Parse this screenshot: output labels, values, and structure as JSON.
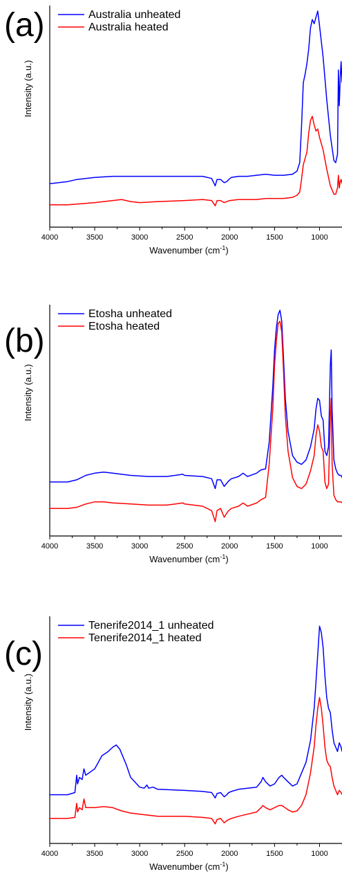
{
  "chart_data": [
    {
      "type": "line",
      "panel_label": "(a)",
      "xlabel": "Wavenumber (cm",
      "xlabel_sup": "-1",
      "xlabel_end": ")",
      "ylabel": "Intensity (a.u.)",
      "xlim": [
        4000,
        750
      ],
      "x_reversed": true,
      "ylim": [
        0,
        1
      ],
      "x_ticks": [
        "4000",
        "3500",
        "3000",
        "2500",
        "2000",
        "1500",
        "1000"
      ],
      "x_tick_values": [
        4000,
        3500,
        3000,
        2500,
        2000,
        1500,
        1000
      ],
      "legend_position": "top-left",
      "series": [
        {
          "name": "Australia unheated",
          "color": "#0000ff",
          "x": [
            4000,
            3800,
            3700,
            3500,
            3300,
            3000,
            2800,
            2500,
            2300,
            2200,
            2160,
            2140,
            2100,
            2060,
            2030,
            2010,
            1980,
            1900,
            1800,
            1700,
            1600,
            1500,
            1400,
            1300,
            1250,
            1220,
            1200,
            1180,
            1160,
            1140,
            1120,
            1100,
            1080,
            1060,
            1040,
            1020,
            1000,
            960,
            920,
            880,
            840,
            820,
            800,
            790,
            780,
            770,
            760,
            750
          ],
          "y": [
            0.18,
            0.19,
            0.2,
            0.21,
            0.215,
            0.215,
            0.215,
            0.215,
            0.215,
            0.205,
            0.17,
            0.2,
            0.2,
            0.185,
            0.19,
            0.2,
            0.21,
            0.215,
            0.215,
            0.22,
            0.225,
            0.22,
            0.22,
            0.225,
            0.24,
            0.28,
            0.45,
            0.66,
            0.7,
            0.75,
            0.82,
            0.92,
            0.96,
            0.94,
            0.97,
            1.0,
            0.93,
            0.78,
            0.58,
            0.41,
            0.29,
            0.28,
            0.32,
            0.72,
            0.55,
            0.68,
            0.76,
            0.66
          ]
        },
        {
          "name": "Australia heated",
          "color": "#ff0000",
          "x": [
            4000,
            3800,
            3500,
            3300,
            3200,
            3100,
            3000,
            2800,
            2500,
            2300,
            2200,
            2160,
            2140,
            2100,
            2060,
            2030,
            2000,
            1900,
            1800,
            1700,
            1600,
            1500,
            1400,
            1300,
            1250,
            1220,
            1200,
            1180,
            1160,
            1140,
            1120,
            1100,
            1080,
            1060,
            1040,
            1020,
            1000,
            960,
            920,
            880,
            840,
            820,
            800,
            790,
            780,
            770,
            760,
            750
          ],
          "y": [
            0.08,
            0.08,
            0.09,
            0.1,
            0.105,
            0.095,
            0.09,
            0.095,
            0.1,
            0.105,
            0.1,
            0.075,
            0.1,
            0.1,
            0.09,
            0.095,
            0.1,
            0.105,
            0.105,
            0.105,
            0.11,
            0.11,
            0.11,
            0.115,
            0.125,
            0.14,
            0.2,
            0.27,
            0.3,
            0.33,
            0.42,
            0.48,
            0.5,
            0.46,
            0.43,
            0.44,
            0.4,
            0.34,
            0.25,
            0.17,
            0.13,
            0.13,
            0.16,
            0.22,
            0.16,
            0.19,
            0.2,
            0.18
          ]
        }
      ]
    },
    {
      "type": "line",
      "panel_label": "(b)",
      "xlabel": "Wavenumber (cm",
      "xlabel_sup": "-1",
      "xlabel_end": ")",
      "ylabel": "Intensity (a.u.)",
      "xlim": [
        4000,
        750
      ],
      "x_reversed": true,
      "ylim": [
        0,
        1
      ],
      "x_ticks": [
        "4000",
        "3500",
        "3000",
        "2500",
        "2000",
        "1500",
        "1000"
      ],
      "x_tick_values": [
        4000,
        3500,
        3000,
        2500,
        2000,
        1500,
        1000
      ],
      "legend_position": "top-left",
      "series": [
        {
          "name": "Etosha unheated",
          "color": "#0000ff",
          "x": [
            4000,
            3800,
            3700,
            3600,
            3500,
            3400,
            3300,
            3100,
            2900,
            2700,
            2520,
            2500,
            2300,
            2200,
            2160,
            2140,
            2100,
            2060,
            2030,
            2010,
            1980,
            1900,
            1850,
            1800,
            1700,
            1650,
            1600,
            1560,
            1520,
            1500,
            1480,
            1460,
            1440,
            1420,
            1400,
            1380,
            1350,
            1300,
            1250,
            1200,
            1150,
            1100,
            1060,
            1040,
            1020,
            1000,
            980,
            960,
            940,
            920,
            900,
            880,
            870,
            860,
            840,
            820,
            800,
            780,
            760,
            750
          ],
          "y": [
            0.22,
            0.22,
            0.23,
            0.25,
            0.26,
            0.265,
            0.26,
            0.25,
            0.245,
            0.245,
            0.255,
            0.25,
            0.245,
            0.235,
            0.19,
            0.23,
            0.23,
            0.2,
            0.215,
            0.225,
            0.235,
            0.245,
            0.26,
            0.245,
            0.26,
            0.275,
            0.28,
            0.4,
            0.65,
            0.82,
            0.92,
            0.98,
            1.0,
            0.95,
            0.78,
            0.6,
            0.45,
            0.34,
            0.31,
            0.3,
            0.32,
            0.38,
            0.46,
            0.55,
            0.6,
            0.59,
            0.52,
            0.5,
            0.36,
            0.34,
            0.38,
            0.75,
            0.82,
            0.55,
            0.32,
            0.28,
            0.26,
            0.25,
            0.25,
            0.24
          ]
        },
        {
          "name": "Etosha heated",
          "color": "#ff0000",
          "x": [
            4000,
            3800,
            3700,
            3600,
            3500,
            3400,
            3300,
            3100,
            2900,
            2700,
            2520,
            2500,
            2300,
            2200,
            2160,
            2140,
            2100,
            2060,
            2030,
            2010,
            1980,
            1900,
            1850,
            1800,
            1700,
            1650,
            1600,
            1560,
            1520,
            1500,
            1480,
            1460,
            1440,
            1420,
            1400,
            1380,
            1350,
            1300,
            1250,
            1200,
            1150,
            1100,
            1060,
            1040,
            1020,
            1000,
            980,
            960,
            940,
            920,
            900,
            880,
            870,
            860,
            840,
            820,
            800,
            780,
            760,
            750
          ],
          "y": [
            0.1,
            0.1,
            0.105,
            0.12,
            0.13,
            0.13,
            0.125,
            0.12,
            0.115,
            0.115,
            0.125,
            0.12,
            0.11,
            0.09,
            0.04,
            0.09,
            0.1,
            0.06,
            0.08,
            0.09,
            0.1,
            0.11,
            0.125,
            0.11,
            0.125,
            0.14,
            0.15,
            0.3,
            0.55,
            0.75,
            0.86,
            0.94,
            0.95,
            0.9,
            0.72,
            0.52,
            0.36,
            0.24,
            0.2,
            0.19,
            0.21,
            0.27,
            0.34,
            0.43,
            0.48,
            0.45,
            0.38,
            0.36,
            0.22,
            0.19,
            0.21,
            0.52,
            0.6,
            0.3,
            0.16,
            0.14,
            0.13,
            0.13,
            0.13,
            0.125
          ]
        }
      ]
    },
    {
      "type": "line",
      "panel_label": "(c)",
      "xlabel": "Wavenumber (cm",
      "xlabel_sup": "-1",
      "xlabel_end": ")",
      "ylabel": "Intensity (a.u.)",
      "xlim": [
        4000,
        750
      ],
      "x_reversed": true,
      "ylim": [
        0,
        1
      ],
      "x_ticks": [
        "4000",
        "3500",
        "3000",
        "2500",
        "2000",
        "1500",
        "1000"
      ],
      "x_tick_values": [
        4000,
        3500,
        3000,
        2500,
        2000,
        1500,
        1000
      ],
      "legend_position": "top-left",
      "series": [
        {
          "name": "Tenerife2014_1 unheated",
          "color": "#0000ff",
          "x": [
            4000,
            3800,
            3720,
            3700,
            3690,
            3670,
            3640,
            3620,
            3600,
            3500,
            3420,
            3350,
            3300,
            3260,
            3220,
            3150,
            3100,
            3000,
            2950,
            2920,
            2900,
            2850,
            2800,
            2500,
            2300,
            2200,
            2160,
            2140,
            2100,
            2060,
            2030,
            2010,
            1980,
            1900,
            1800,
            1700,
            1650,
            1630,
            1600,
            1550,
            1500,
            1450,
            1420,
            1400,
            1350,
            1300,
            1250,
            1200,
            1150,
            1100,
            1060,
            1040,
            1020,
            1000,
            980,
            960,
            940,
            920,
            900,
            880,
            860,
            840,
            820,
            800,
            780,
            760,
            750
          ],
          "y": [
            0.2,
            0.2,
            0.21,
            0.29,
            0.25,
            0.28,
            0.27,
            0.32,
            0.29,
            0.32,
            0.38,
            0.4,
            0.42,
            0.43,
            0.41,
            0.34,
            0.28,
            0.235,
            0.23,
            0.245,
            0.23,
            0.235,
            0.225,
            0.22,
            0.215,
            0.21,
            0.185,
            0.205,
            0.21,
            0.19,
            0.2,
            0.21,
            0.215,
            0.225,
            0.23,
            0.235,
            0.26,
            0.28,
            0.26,
            0.24,
            0.25,
            0.28,
            0.29,
            0.28,
            0.26,
            0.24,
            0.25,
            0.3,
            0.35,
            0.45,
            0.6,
            0.72,
            0.85,
            0.98,
            0.95,
            0.88,
            0.75,
            0.65,
            0.6,
            0.58,
            0.5,
            0.44,
            0.42,
            0.4,
            0.44,
            0.42,
            0.4
          ]
        },
        {
          "name": "Tenerife2014_1 heated",
          "color": "#ff0000",
          "x": [
            4000,
            3800,
            3720,
            3700,
            3690,
            3670,
            3640,
            3620,
            3600,
            3500,
            3400,
            3300,
            3200,
            3100,
            3000,
            2900,
            2800,
            2500,
            2300,
            2200,
            2160,
            2140,
            2100,
            2060,
            2030,
            2010,
            1980,
            1900,
            1800,
            1700,
            1650,
            1630,
            1600,
            1550,
            1500,
            1450,
            1420,
            1400,
            1350,
            1300,
            1250,
            1200,
            1150,
            1100,
            1060,
            1040,
            1020,
            1000,
            980,
            960,
            940,
            920,
            900,
            880,
            860,
            840,
            820,
            800,
            780,
            760,
            750
          ],
          "y": [
            0.09,
            0.09,
            0.095,
            0.16,
            0.12,
            0.14,
            0.13,
            0.18,
            0.14,
            0.14,
            0.145,
            0.14,
            0.125,
            0.115,
            0.11,
            0.105,
            0.1,
            0.1,
            0.095,
            0.09,
            0.065,
            0.085,
            0.09,
            0.07,
            0.08,
            0.085,
            0.09,
            0.1,
            0.11,
            0.12,
            0.14,
            0.15,
            0.14,
            0.13,
            0.14,
            0.15,
            0.15,
            0.145,
            0.13,
            0.12,
            0.125,
            0.15,
            0.2,
            0.3,
            0.42,
            0.52,
            0.6,
            0.65,
            0.6,
            0.52,
            0.42,
            0.36,
            0.34,
            0.33,
            0.28,
            0.24,
            0.22,
            0.2,
            0.22,
            0.21,
            0.2
          ]
        }
      ]
    }
  ]
}
